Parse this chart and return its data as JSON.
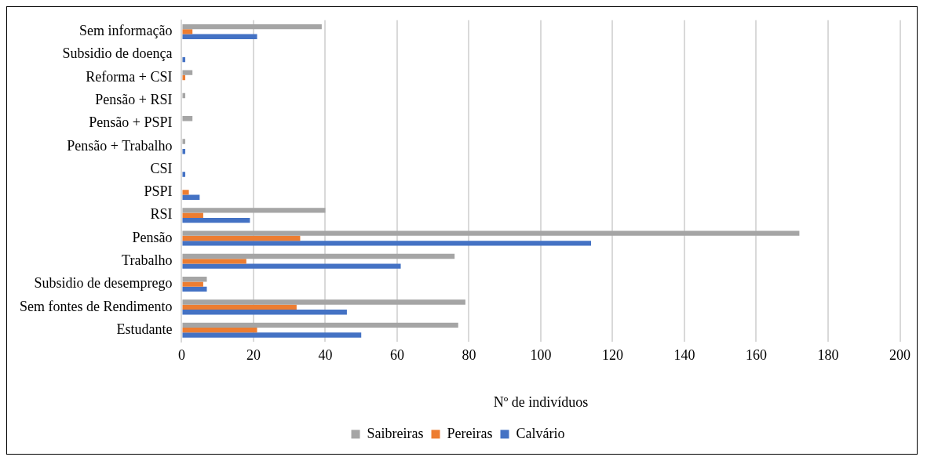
{
  "chart_data": {
    "type": "bar",
    "orientation": "horizontal",
    "xlabel": "Nº de indivíduos",
    "categories": [
      "Sem informação",
      "Subsidio de doença",
      "Reforma + CSI",
      "Pensão + RSI",
      "Pensão + PSPI",
      "Pensão + Trabalho",
      "CSI",
      "PSPI",
      "RSI",
      "Pensão",
      "Trabalho",
      "Subsidio de desemprego",
      "Sem fontes de Rendimento",
      "Estudante"
    ],
    "series": [
      {
        "name": "Saibreiras",
        "color": "#a5a5a5",
        "values": [
          39,
          0,
          3,
          1,
          3,
          1,
          0,
          0,
          40,
          172,
          76,
          7,
          79,
          77
        ]
      },
      {
        "name": "Pereiras",
        "color": "#ed7d31",
        "values": [
          3,
          0,
          1,
          0,
          0,
          0,
          0,
          2,
          6,
          33,
          18,
          6,
          32,
          21
        ]
      },
      {
        "name": "Calvário",
        "color": "#4472c4",
        "values": [
          21,
          1,
          0,
          0,
          0,
          1,
          1,
          5,
          19,
          114,
          61,
          7,
          46,
          50
        ]
      }
    ],
    "xlim": [
      0,
      200
    ],
    "xticks": [
      0,
      20,
      40,
      60,
      80,
      100,
      120,
      140,
      160,
      180,
      200
    ],
    "grid": "x",
    "legend": "bottom"
  }
}
